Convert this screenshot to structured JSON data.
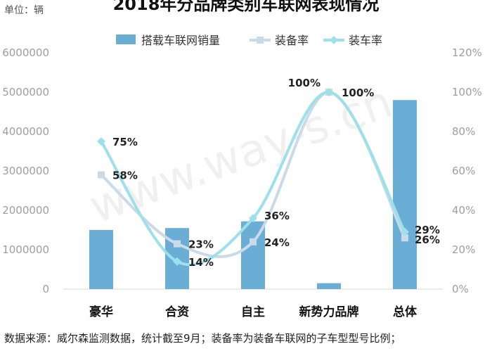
{
  "header": {
    "title": "2018年分品牌类别车联网表现情况",
    "unit": "单位：辆"
  },
  "footnote": "数据来源：威尔森监测数据，统计截至9月；装备率为装备车联网的子车型型号比例；",
  "watermark": "www.way-s.cn",
  "colors": {
    "bar": "#6aaed6",
    "equip_line": "#c9dbe8",
    "install_line": "#9ee0ea",
    "axis_text": "#9e9e9e",
    "label_text": "#222222"
  },
  "chart_data": {
    "type": "bar",
    "title": "2018年分品牌类别车联网表现情况",
    "categories": [
      "豪华",
      "合资",
      "自主",
      "新势力品牌",
      "总体"
    ],
    "series": [
      {
        "name": "搭载车联网销量",
        "type": "bar",
        "axis": "left",
        "values": [
          1500000,
          1550000,
          1720000,
          150000,
          4800000
        ]
      },
      {
        "name": "装备率",
        "type": "line",
        "axis": "right",
        "marker": "square",
        "values": [
          58,
          23,
          24,
          100,
          26
        ],
        "labels": [
          "58%",
          "23%",
          "24%",
          "100%",
          "26%"
        ]
      },
      {
        "name": "装车率",
        "type": "line",
        "axis": "right",
        "marker": "diamond",
        "values": [
          75,
          14,
          36,
          100,
          29
        ],
        "labels": [
          "75%",
          "14%",
          "36%",
          "100%",
          "29%"
        ]
      }
    ],
    "y_left": {
      "min": 0,
      "max": 6000000,
      "ticks": [
        "0",
        "1000000",
        "2000000",
        "3000000",
        "4000000",
        "5000000",
        "6000000"
      ]
    },
    "y_right": {
      "min": 0,
      "max": 120,
      "ticks": [
        "0%",
        "20%",
        "40%",
        "60%",
        "80%",
        "100%",
        "120%"
      ]
    },
    "grid": false,
    "legend_position": "top"
  }
}
